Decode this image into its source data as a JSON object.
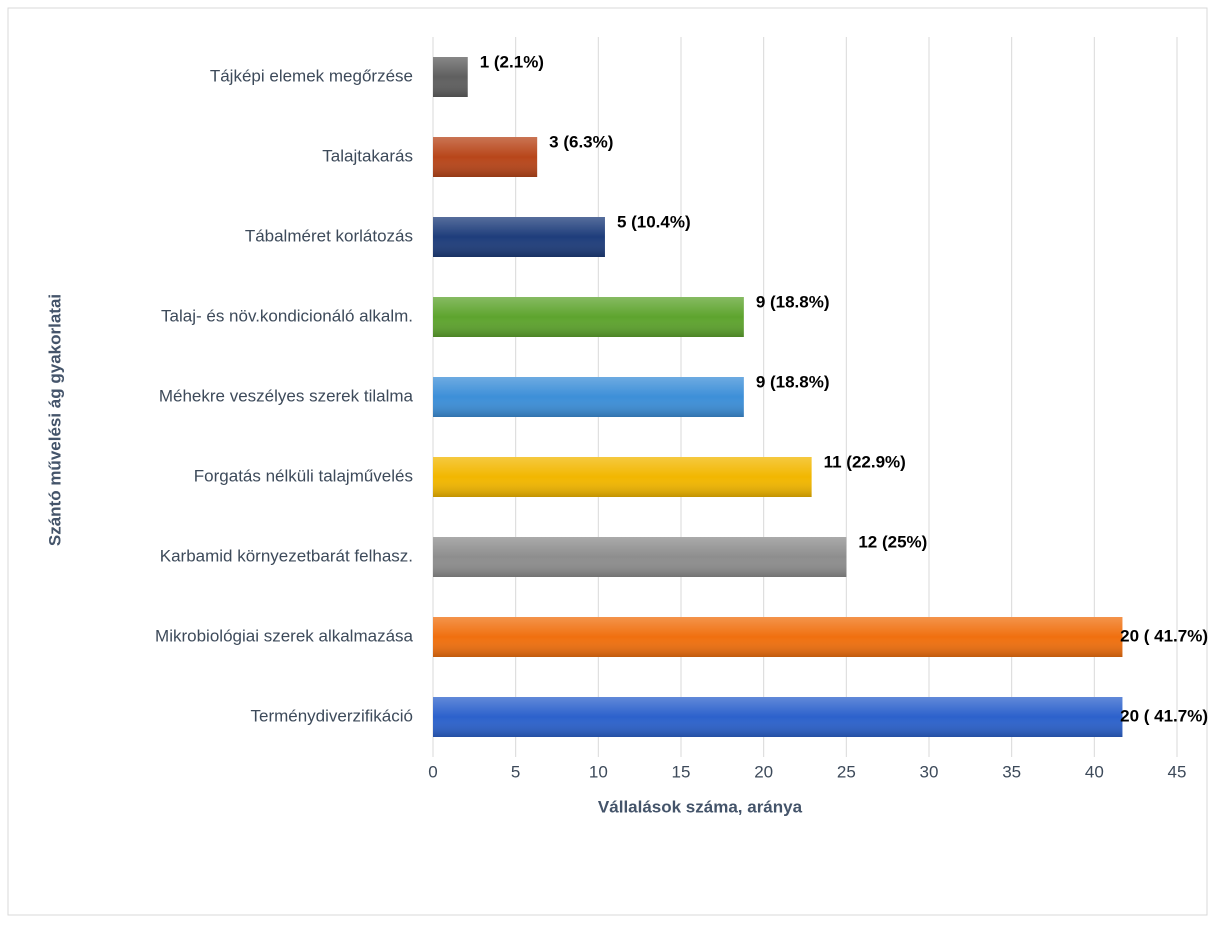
{
  "chart_data": {
    "type": "bar",
    "orientation": "horizontal",
    "x_label": "Vállalások száma, aránya",
    "y_label": "Szántó művelési ág gyakorlatai",
    "categories": [
      "Tájképi elemek megőrzése",
      "Talajtakarás",
      "Tábalméret korlátozás",
      "Talaj- és növ.kondicionáló alkalm.",
      "Méhekre veszélyes szerek tilalma",
      "Forgatás nélküli talajművelés",
      "Karbamid környezetbarát felhasz.",
      "Mikrobiológiai szerek alkalmazása",
      "Terménydiverzifikáció"
    ],
    "values": [
      2.1,
      6.3,
      10.4,
      18.8,
      18.8,
      22.9,
      25,
      41.7,
      41.7
    ],
    "value_labels": [
      "1  (2.1%)",
      "3  (6.3%)",
      "5  (10.4%)",
      "9  (18.8%)",
      "9  (18.8%)",
      "11  (22.9%)",
      "12  (25%)",
      "20 ( 41.7%)",
      "20 ( 41.7%)"
    ],
    "colors": [
      "#5f5f5f",
      "#b8461a",
      "#1e3d7b",
      "#5ea42e",
      "#3d8fd8",
      "#f2b700",
      "#8e8e8e",
      "#f0700f",
      "#2c62cc"
    ],
    "xlim": [
      0,
      45
    ],
    "xticks": [
      0,
      5,
      10,
      15,
      20,
      25,
      30,
      35,
      40,
      45
    ],
    "grid": true
  }
}
